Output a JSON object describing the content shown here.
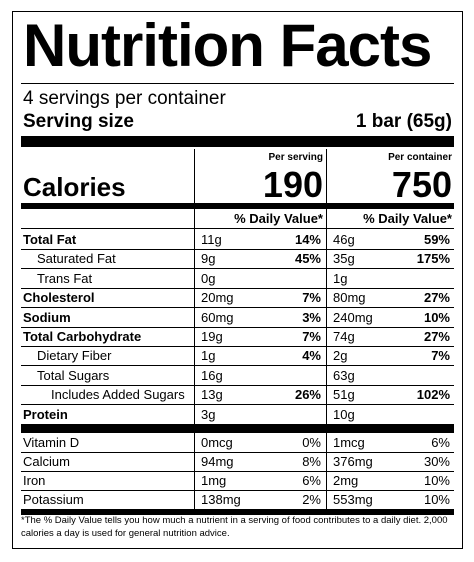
{
  "title": "Nutrition Facts",
  "servings_per_container": "4 servings per container",
  "serving_size_label": "Serving size",
  "serving_size_value": "1 bar (65g)",
  "calories_label": "Calories",
  "columns": [
    {
      "header": "Per serving",
      "calories": "190",
      "dv_header": "% Daily Value*"
    },
    {
      "header": "Per container",
      "calories": "750",
      "dv_header": "% Daily Value*"
    }
  ],
  "rows": [
    {
      "name": "Total Fat",
      "bold": true,
      "indent": 0,
      "serving_amount": "11g",
      "serving_dv": "14%",
      "container_amount": "46g",
      "container_dv": "59%",
      "dv_bold": true
    },
    {
      "name": "Saturated Fat",
      "bold": false,
      "indent": 1,
      "serving_amount": "9g",
      "serving_dv": "45%",
      "container_amount": "35g",
      "container_dv": "175%",
      "dv_bold": true
    },
    {
      "name": "Trans Fat",
      "bold": false,
      "indent": 1,
      "serving_amount": "0g",
      "serving_dv": "",
      "container_amount": "1g",
      "container_dv": "",
      "dv_bold": true
    },
    {
      "name": "Cholesterol",
      "bold": true,
      "indent": 0,
      "serving_amount": "20mg",
      "serving_dv": "7%",
      "container_amount": "80mg",
      "container_dv": "27%",
      "dv_bold": true
    },
    {
      "name": "Sodium",
      "bold": true,
      "indent": 0,
      "serving_amount": "60mg",
      "serving_dv": "3%",
      "container_amount": "240mg",
      "container_dv": "10%",
      "dv_bold": true
    },
    {
      "name": "Total Carbohydrate",
      "bold": true,
      "indent": 0,
      "serving_amount": "19g",
      "serving_dv": "7%",
      "container_amount": "74g",
      "container_dv": "27%",
      "dv_bold": true
    },
    {
      "name": "Dietary Fiber",
      "bold": false,
      "indent": 1,
      "serving_amount": "1g",
      "serving_dv": "4%",
      "container_amount": "2g",
      "container_dv": "7%",
      "dv_bold": true
    },
    {
      "name": "Total Sugars",
      "bold": false,
      "indent": 1,
      "serving_amount": "16g",
      "serving_dv": "",
      "container_amount": "63g",
      "container_dv": "",
      "dv_bold": true
    },
    {
      "name": "Includes Added Sugars",
      "bold": false,
      "indent": 2,
      "serving_amount": "13g",
      "serving_dv": "26%",
      "container_amount": "51g",
      "container_dv": "102%",
      "dv_bold": true
    },
    {
      "name": "Protein",
      "bold": true,
      "indent": 0,
      "serving_amount": "3g",
      "serving_dv": "",
      "container_amount": "10g",
      "container_dv": "",
      "dv_bold": true
    }
  ],
  "micronutrients": [
    {
      "name": "Vitamin D",
      "serving_amount": "0mcg",
      "serving_dv": "0%",
      "container_amount": "1mcg",
      "container_dv": "6%"
    },
    {
      "name": "Calcium",
      "serving_amount": "94mg",
      "serving_dv": "8%",
      "container_amount": "376mg",
      "container_dv": "30%"
    },
    {
      "name": "Iron",
      "serving_amount": "1mg",
      "serving_dv": "6%",
      "container_amount": "2mg",
      "container_dv": "10%"
    },
    {
      "name": "Potassium",
      "serving_amount": "138mg",
      "serving_dv": "2%",
      "container_amount": "553mg",
      "container_dv": "10%"
    }
  ],
  "footnote": "*The % Daily Value tells you how much a nutrient in a serving of food contributes to a daily diet. 2,000 calories a day is used for general nutrition advice."
}
